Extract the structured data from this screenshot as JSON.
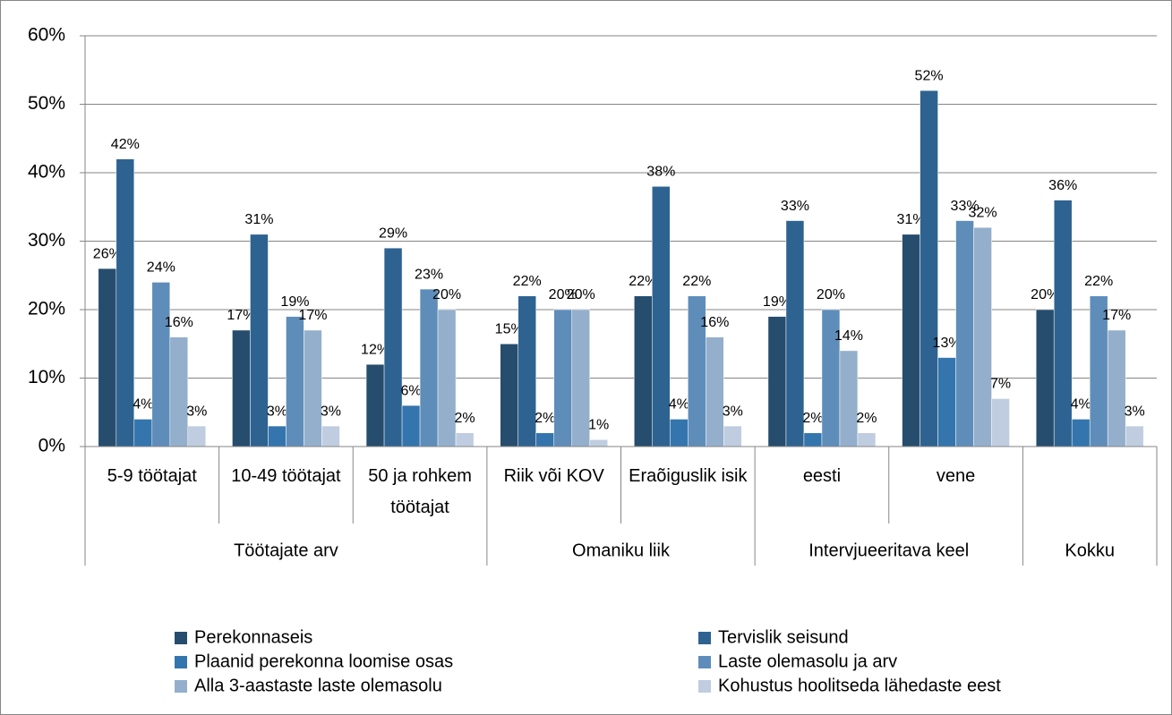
{
  "chart_data": {
    "type": "bar",
    "categories": [
      "5-9 töötajat",
      "10-49 töötajat",
      "50 ja rohkem töötajat",
      "Riik või KOV",
      "Eraõiguslik isik",
      "eesti",
      "vene",
      null
    ],
    "groups": [
      {
        "name": "Töötajate arv",
        "span": 3
      },
      {
        "name": "Omaniku liik",
        "span": 2
      },
      {
        "name": "Intervjueeritava keel",
        "span": 2
      },
      {
        "name": "Kokku",
        "span": 1
      }
    ],
    "series": [
      {
        "name": "Perekonnaseis",
        "color": "#264d6e",
        "values": [
          26,
          17,
          12,
          15,
          22,
          19,
          31,
          20
        ],
        "value_labels": [
          "26%",
          "17%",
          "12%",
          "15%",
          "22%",
          "19%",
          "31%",
          "20%"
        ]
      },
      {
        "name": "Tervislik seisund",
        "color": "#2e6391",
        "values": [
          42,
          31,
          29,
          22,
          38,
          33,
          52,
          36
        ],
        "value_labels": [
          "42%",
          "31%",
          "29%",
          "22%",
          "38%",
          "33%",
          "52%",
          "36%"
        ]
      },
      {
        "name": "Plaanid perekonna loomise osas",
        "color": "#3475ad",
        "values": [
          4,
          3,
          6,
          2,
          4,
          2,
          13,
          4
        ],
        "value_labels": [
          "4%",
          "3%",
          "6%",
          "2%",
          "4%",
          "2%",
          "13%",
          "4%"
        ]
      },
      {
        "name": "Laste olemasolu ja arv",
        "color": "#5f8dba",
        "values": [
          24,
          19,
          23,
          20,
          22,
          20,
          33,
          22
        ],
        "value_labels": [
          "24%",
          "19%",
          "23%",
          "20%",
          "22%",
          "20%",
          "33%",
          "22%"
        ]
      },
      {
        "name": "Alla 3-aastaste laste olemasolu",
        "color": "#94afcc",
        "values": [
          16,
          17,
          20,
          20,
          16,
          14,
          32,
          17
        ],
        "value_labels": [
          "16%",
          "17%",
          "20%",
          "20%",
          "16%",
          "14%",
          "32%",
          "17%"
        ]
      },
      {
        "name": "Kohustus hoolitseda lähedaste eest",
        "color": "#c0cde0",
        "values": [
          3,
          3,
          2,
          1,
          3,
          2,
          7,
          3
        ],
        "value_labels": [
          "3%",
          "3%",
          "2%",
          "1%",
          "3%",
          "2%",
          "7%",
          "3%"
        ]
      }
    ],
    "ylim": [
      0,
      60
    ],
    "yticks": [
      {
        "value": 0,
        "label": "0%"
      },
      {
        "value": 10,
        "label": "10%"
      },
      {
        "value": 20,
        "label": "20%"
      },
      {
        "value": 30,
        "label": "30%"
      },
      {
        "value": 40,
        "label": "40%"
      },
      {
        "value": 50,
        "label": "50%"
      },
      {
        "value": 60,
        "label": "60%"
      }
    ],
    "grid": true,
    "legend": "bottom"
  }
}
